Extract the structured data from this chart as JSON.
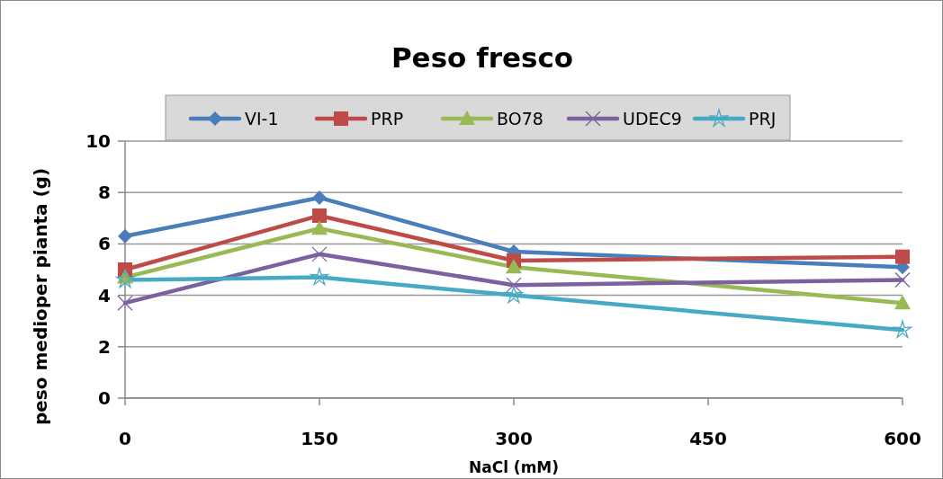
{
  "chart_data": {
    "type": "line",
    "title": "Peso fresco",
    "xlabel": "NaCl (mM)",
    "ylabel": "peso medioper pianta (g)",
    "x": [
      0,
      150,
      300,
      600
    ],
    "xlim": [
      0,
      600
    ],
    "xticks": [
      0,
      150,
      300,
      450,
      600
    ],
    "ylim": [
      0,
      10
    ],
    "yticks": [
      0,
      2,
      4,
      6,
      8,
      10
    ],
    "grid": "y",
    "legend": "top",
    "series": [
      {
        "name": "VI-1",
        "color": "#4a7ebb",
        "marker": "diamond",
        "values": [
          6.3,
          7.8,
          5.7,
          5.1
        ]
      },
      {
        "name": "PRP",
        "color": "#be4b48",
        "marker": "square",
        "values": [
          5.0,
          7.1,
          5.35,
          5.5
        ]
      },
      {
        "name": "BO78",
        "color": "#98b954",
        "marker": "triangle",
        "values": [
          4.7,
          6.6,
          5.1,
          3.7
        ]
      },
      {
        "name": "UDEC9",
        "color": "#7d60a0",
        "marker": "cross",
        "values": [
          3.7,
          5.6,
          4.4,
          4.6
        ]
      },
      {
        "name": "PRJ",
        "color": "#46aac5",
        "marker": "star",
        "values": [
          4.6,
          4.7,
          4.0,
          2.65
        ]
      }
    ]
  }
}
